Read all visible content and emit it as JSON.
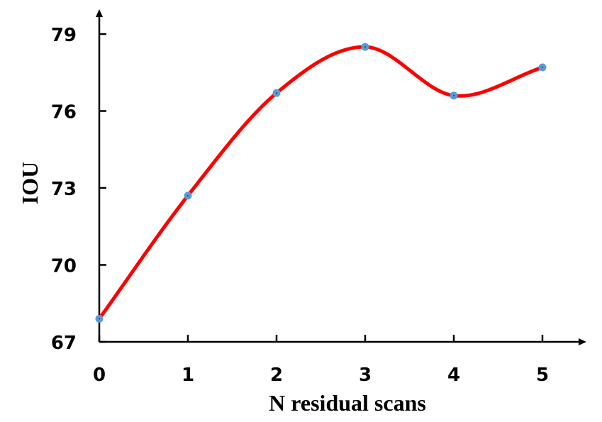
{
  "chart_data": {
    "type": "line",
    "title": "",
    "xlabel": "N residual scans",
    "ylabel": "IOU",
    "x": [
      0,
      1,
      2,
      3,
      4,
      5
    ],
    "series": [
      {
        "values": [
          67.9,
          72.7,
          76.7,
          78.5,
          76.6,
          77.7
        ]
      }
    ],
    "xlim": [
      0,
      5.5
    ],
    "ylim": [
      67,
      79
    ],
    "yticks": [
      67,
      70,
      73,
      76,
      79
    ],
    "xticks": [
      0,
      1,
      2,
      3,
      4,
      5
    ],
    "grid": false,
    "smooth": true,
    "line_color": "#ff0000",
    "marker_color": "#5b9bd5"
  }
}
